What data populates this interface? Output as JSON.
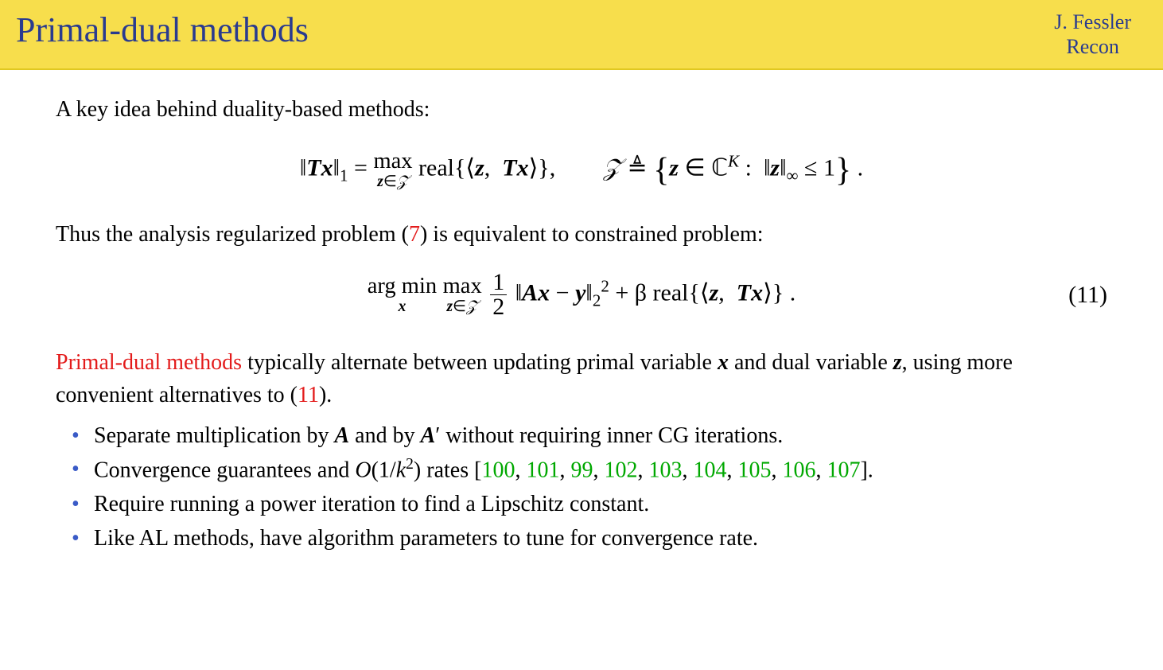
{
  "header": {
    "title": "Primal-dual methods",
    "author": "J. Fessler",
    "subtitle": "Recon"
  },
  "body": {
    "intro": "A key idea behind duality-based methods:",
    "thus_text_before": "Thus the analysis regularized problem (",
    "ref7": "7",
    "thus_text_after": ") is equivalent to constrained problem:",
    "eq_number": "(11)",
    "pd_methods_label": "Primal-dual methods",
    "pd_text_1": " typically alternate between updating primal variable ",
    "pd_var_x": "x",
    "pd_text_2": " and dual variable ",
    "pd_var_z": "z",
    "pd_text_3": ", using more convenient alternatives to (",
    "ref11": "11",
    "pd_text_4": ").",
    "bullet1_a": "Separate multiplication by ",
    "bullet1_A": "A",
    "bullet1_b": " and by ",
    "bullet1_Ap": "A",
    "bullet1_prime": "′",
    "bullet1_c": " without requiring inner CG iterations.",
    "bullet2_a": "Convergence guarantees and ",
    "bullet2_O": "O",
    "bullet2_b": "(1/",
    "bullet2_k": "k",
    "bullet2_sq": "2",
    "bullet2_c": ") rates [",
    "refs": [
      "100",
      "101",
      "99",
      "102",
      "103",
      "104",
      "105",
      "106",
      "107"
    ],
    "bullet2_d": "].",
    "bullet3": "Require running a power iteration to find a Lipschitz constant.",
    "bullet4": "Like AL methods, have algorithm parameters to tune for convergence rate."
  },
  "colors": {
    "header_bg": "#f7de4c",
    "header_text": "#2a3b8f",
    "red": "#e31b1b",
    "green": "#00a800",
    "bullet": "#3a5bc7"
  }
}
